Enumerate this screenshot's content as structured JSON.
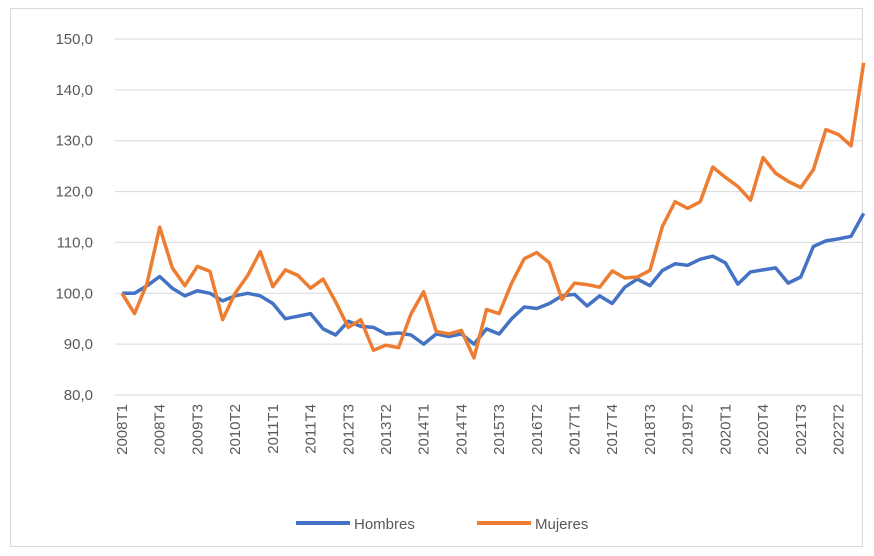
{
  "chart_data": {
    "type": "line",
    "categories": [
      "2008T1",
      null,
      null,
      "2008T4",
      null,
      null,
      "2009T3",
      null,
      null,
      "2010T2",
      null,
      null,
      "2011T1",
      null,
      null,
      "2011T4",
      null,
      null,
      "2012T3",
      null,
      null,
      "2013T2",
      null,
      null,
      "2014T1",
      null,
      null,
      "2014T4",
      null,
      null,
      "2015T3",
      null,
      null,
      "2016T2",
      null,
      null,
      "2017T1",
      null,
      null,
      "2017T4",
      null,
      null,
      "2018T3",
      null,
      null,
      "2019T2",
      null,
      null,
      "2020T1",
      null,
      null,
      "2020T4",
      null,
      null,
      "2021T3",
      null,
      null,
      "2022T2",
      null,
      null
    ],
    "series": [
      {
        "name": "Hombres",
        "color": "#4472c4",
        "values": [
          100,
          100,
          101.5,
          103.3,
          101,
          99.5,
          100.5,
          100,
          98.5,
          99.5,
          100,
          99.5,
          98,
          95,
          95.5,
          96,
          93,
          91.8,
          94.5,
          93.5,
          93.3,
          92,
          92.2,
          91.8,
          90,
          92,
          91.5,
          92,
          90,
          93,
          92,
          95,
          97.3,
          97,
          98,
          99.5,
          99.8,
          97.5,
          99.5,
          98,
          101.2,
          102.8,
          101.5,
          104.5,
          105.8,
          105.5,
          106.7,
          107.3,
          106,
          101.8,
          104.2,
          104.6,
          105,
          102,
          103.2,
          109.2,
          110.3,
          110.7,
          111.2,
          115.7
        ]
      },
      {
        "name": "Mujeres",
        "color": "#ed7d31",
        "values": [
          100,
          96,
          102,
          113,
          105,
          101.5,
          105.3,
          104.3,
          94.8,
          100,
          103.5,
          108.2,
          101.3,
          104.6,
          103.5,
          101,
          102.8,
          98.3,
          93.3,
          94.8,
          88.8,
          89.8,
          89.3,
          96,
          100.3,
          92.5,
          92,
          92.7,
          87.3,
          96.8,
          96,
          102,
          106.8,
          108,
          106,
          98.8,
          102,
          101.7,
          101.2,
          104.4,
          103,
          103.2,
          104.5,
          113.2,
          118,
          116.7,
          118,
          124.8,
          122.8,
          121,
          118.3,
          126.7,
          123.6,
          122,
          120.8,
          124.3,
          132.2,
          131.2,
          129,
          145.3
        ]
      }
    ],
    "ylim": [
      80,
      150
    ],
    "yticks": [
      {
        "value": 80,
        "label": "80,0"
      },
      {
        "value": 90,
        "label": "90,0"
      },
      {
        "value": 100,
        "label": "100,0"
      },
      {
        "value": 110,
        "label": "110,0"
      },
      {
        "value": 120,
        "label": "120,0"
      },
      {
        "value": 130,
        "label": "130,0"
      },
      {
        "value": 140,
        "label": "140,0"
      },
      {
        "value": 150,
        "label": "150,0"
      }
    ],
    "grid": true,
    "legend": "bottom"
  }
}
